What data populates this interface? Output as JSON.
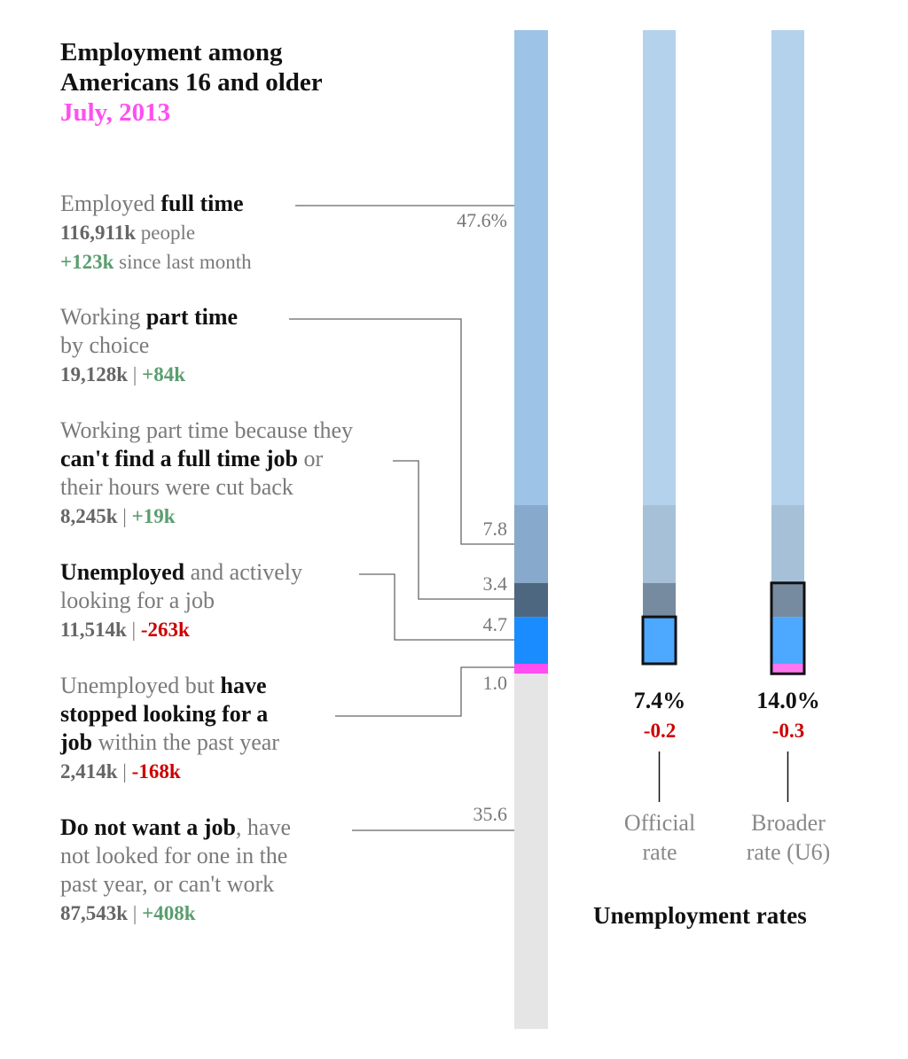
{
  "title": {
    "line1": "Employment among",
    "line2": "Americans 16 and older",
    "date": "July, 2013"
  },
  "chart_data": {
    "type": "stacked-bar",
    "segments": [
      {
        "key": "full_time",
        "percent": 47.6,
        "label": "47.6%",
        "color": "#9dc3e6",
        "side_color": "#b5d2ed"
      },
      {
        "key": "part_choice",
        "percent": 7.8,
        "label": "7.8",
        "color": "#87a9cb",
        "side_color": "#a6c0d8"
      },
      {
        "key": "part_economic",
        "percent": 3.4,
        "label": "3.4",
        "color": "#4e6780",
        "side_color": "#768ba0"
      },
      {
        "key": "unemployed",
        "percent": 4.7,
        "label": "4.7",
        "color": "#1a8cff",
        "side_color": "#4da8ff"
      },
      {
        "key": "stopped_looking",
        "percent": 1.0,
        "label": "1.0",
        "color": "#ff4df0",
        "side_color": "#ff77f0"
      },
      {
        "key": "not_want_job",
        "percent": 35.6,
        "label": "35.6",
        "color": "#e5e5e5",
        "side_color": null
      }
    ],
    "rates": [
      {
        "value": "7.4%",
        "change": "-0.2",
        "label1": "Official",
        "label2": "rate",
        "includes": [
          "unemployed"
        ]
      },
      {
        "value": "14.0%",
        "change": "-0.3",
        "label1": "Broader",
        "label2": "rate (U6)",
        "includes": [
          "part_economic",
          "unemployed",
          "stopped_looking"
        ]
      }
    ],
    "rates_title": "Unemployment rates"
  },
  "blocks": {
    "full_time": {
      "a": "Employed ",
      "b": "full time",
      "count": "116,911k",
      "count_suffix": " people",
      "change": "+123k",
      "change_suffix": " since last month"
    },
    "part_choice": {
      "a": "Working ",
      "b": "part time",
      "c": "by choice",
      "count": "19,128k",
      "sep": " | ",
      "change": "+84k"
    },
    "part_economic": {
      "a": "Working part time because they",
      "b": "can't find a full time job",
      "c": " or",
      "d": "their hours were cut back",
      "count": "8,245k",
      "sep": " | ",
      "change": "+19k"
    },
    "unemployed": {
      "b": "Unemployed",
      "a": " and actively",
      "c": "looking for a job",
      "count": "11,514k",
      "sep": " | ",
      "change": "-263k"
    },
    "stopped": {
      "a": "Unemployed but ",
      "b": "have",
      "b2": "stopped looking for a",
      "b3": "job",
      "c": " within the past year",
      "count": "2,414k",
      "sep": " | ",
      "change": "-168k"
    },
    "not_want": {
      "b": "Do not want a job",
      "a": ", have",
      "c": "not looked for one in the",
      "d": "past year, or can't work",
      "count": "87,543k",
      "sep": " | ",
      "change": "+408k"
    }
  },
  "colors": {
    "accent": "#ff4ff0",
    "positive": "#5a9e6f",
    "negative": "#cc0000"
  }
}
